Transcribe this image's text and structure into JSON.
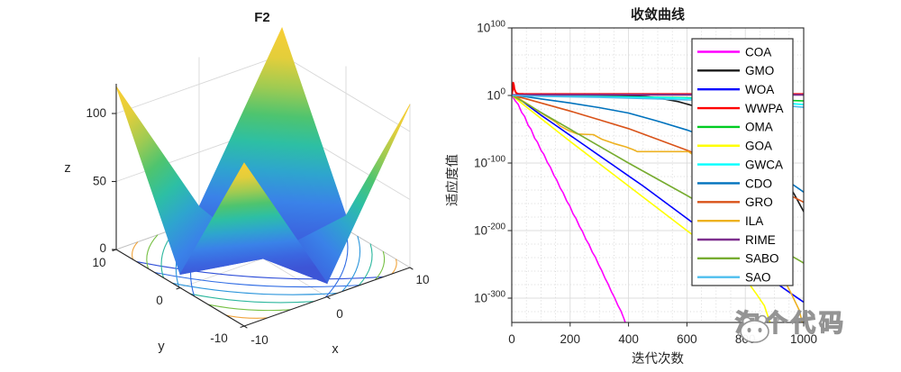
{
  "watermark": {
    "text": "淘个代码"
  },
  "chart_data": [
    {
      "type": "surface",
      "title": "F2",
      "xlabel": "x",
      "ylabel": "y",
      "zlabel": "z",
      "x_range": [
        -10,
        10
      ],
      "y_range": [
        -10,
        10
      ],
      "z_range": [
        0,
        120
      ],
      "x_ticks": [
        -10,
        0,
        10
      ],
      "y_ticks": [
        10,
        0,
        -10
      ],
      "z_ticks": [
        100,
        50,
        0
      ],
      "x_tick_labels": [
        "-10",
        "0",
        "10"
      ],
      "y_tick_labels": [
        "10",
        "0",
        "-10"
      ],
      "z_tick_labels": [
        "100",
        "50",
        "0"
      ],
      "corner_peak_value": 120,
      "shape_note": "Benchmark function F2: four corner peaks of height ~120 with valleys falling to 0 along the x=0 and y=0 axes; parula colormap; contour projection drawn on the floor plane",
      "colormap": "parula",
      "floor_contour_colors": [
        "#F0A33A",
        "#76C043",
        "#2DB79E",
        "#2D96DC",
        "#2E6BE4",
        "#3050D9"
      ]
    },
    {
      "type": "line",
      "title": "收敛曲线",
      "xlabel": "迭代次数",
      "ylabel": "适应度值",
      "y_scale": "log10",
      "x_range": [
        0,
        1000
      ],
      "y_exponent_range": [
        -336,
        100
      ],
      "x_ticks": [
        0,
        200,
        400,
        600,
        800,
        1000
      ],
      "x_tick_labels": [
        "0",
        "200",
        "400",
        "600",
        "800",
        "1000"
      ],
      "y_tick_exponents": [
        100,
        0,
        -100,
        -200,
        -300
      ],
      "y_tick_labels": [
        {
          "base": "10",
          "exp": "100"
        },
        {
          "base": "10",
          "exp": "0"
        },
        {
          "base": "10",
          "exp": "-100"
        },
        {
          "base": "10",
          "exp": "-200"
        },
        {
          "base": "10",
          "exp": "-300"
        }
      ],
      "grid": "major solid + minor dotted",
      "legend_position": "inside upper right",
      "points_format": "[iteration, log10(fitness)]",
      "series": [
        {
          "name": "COA",
          "color": "#FF00FF",
          "points": [
            [
              0,
              0.5
            ],
            [
              12,
              -8
            ],
            [
              22,
              -13
            ],
            [
              34,
              -25
            ],
            [
              44,
              -31
            ],
            [
              56,
              -44
            ],
            [
              66,
              -50
            ],
            [
              78,
              -63
            ],
            [
              88,
              -69
            ],
            [
              100,
              -81
            ],
            [
              110,
              -87
            ],
            [
              122,
              -99
            ],
            [
              132,
              -106
            ],
            [
              144,
              -118
            ],
            [
              154,
              -125
            ],
            [
              166,
              -137
            ],
            [
              176,
              -144
            ],
            [
              188,
              -156
            ],
            [
              198,
              -163
            ],
            [
              210,
              -175
            ],
            [
              220,
              -182
            ],
            [
              232,
              -194
            ],
            [
              242,
              -201
            ],
            [
              254,
              -213
            ],
            [
              264,
              -220
            ],
            [
              276,
              -232
            ],
            [
              286,
              -239
            ],
            [
              298,
              -251
            ],
            [
              308,
              -259
            ],
            [
              320,
              -271
            ],
            [
              330,
              -279
            ],
            [
              342,
              -291
            ],
            [
              352,
              -299
            ],
            [
              364,
              -311
            ],
            [
              374,
              -319
            ],
            [
              384,
              -330
            ],
            [
              392,
              -340
            ]
          ]
        },
        {
          "name": "GMO",
          "color": "#1A1A1A",
          "points": [
            [
              0,
              0.4
            ],
            [
              60,
              0.4
            ],
            [
              150,
              0.3
            ],
            [
              250,
              0.2
            ],
            [
              350,
              0.1
            ],
            [
              420,
              -0.5
            ],
            [
              470,
              -2
            ],
            [
              520,
              -5
            ],
            [
              570,
              -9
            ],
            [
              620,
              -15
            ],
            [
              670,
              -23
            ],
            [
              720,
              -34
            ],
            [
              770,
              -48
            ],
            [
              820,
              -65
            ],
            [
              860,
              -82
            ],
            [
              900,
              -103
            ],
            [
              940,
              -126
            ],
            [
              970,
              -148
            ],
            [
              1000,
              -172
            ]
          ]
        },
        {
          "name": "WOA",
          "color": "#0000FF",
          "points": [
            [
              0,
              0.3
            ],
            [
              20,
              -3
            ],
            [
              50,
              -13
            ],
            [
              100,
              -29
            ],
            [
              150,
              -44
            ],
            [
              200,
              -59
            ],
            [
              250,
              -74
            ],
            [
              300,
              -89
            ],
            [
              350,
              -104
            ],
            [
              400,
              -119
            ],
            [
              450,
              -134
            ],
            [
              500,
              -150
            ],
            [
              550,
              -166
            ],
            [
              600,
              -182
            ],
            [
              650,
              -198
            ],
            [
              700,
              -214
            ],
            [
              750,
              -229
            ],
            [
              800,
              -245
            ],
            [
              850,
              -261
            ],
            [
              900,
              -276
            ],
            [
              950,
              -291
            ],
            [
              1000,
              -306
            ]
          ]
        },
        {
          "name": "WWPA",
          "color": "#FF0000",
          "points": [
            [
              0,
              1
            ],
            [
              3,
              8
            ],
            [
              5,
              19
            ],
            [
              7,
              16
            ],
            [
              9,
              10
            ],
            [
              12,
              6
            ],
            [
              16,
              3.5
            ],
            [
              22,
              2.6
            ],
            [
              40,
              2.2
            ],
            [
              100,
              2.1
            ],
            [
              400,
              2.1
            ],
            [
              700,
              2.1
            ],
            [
              1000,
              2.1
            ]
          ]
        },
        {
          "name": "OMA",
          "color": "#00CC22",
          "points": [
            [
              0,
              0.3
            ],
            [
              100,
              -0.3
            ],
            [
              200,
              -0.8
            ],
            [
              300,
              -1.4
            ],
            [
              400,
              -2
            ],
            [
              500,
              -2.7
            ],
            [
              600,
              -3.5
            ],
            [
              700,
              -4.5
            ],
            [
              800,
              -5.6
            ],
            [
              900,
              -6.8
            ],
            [
              1000,
              -8
            ]
          ]
        },
        {
          "name": "GOA",
          "color": "#FFFF00",
          "points": [
            [
              0,
              0.2
            ],
            [
              50,
              -17
            ],
            [
              100,
              -34
            ],
            [
              200,
              -68
            ],
            [
              300,
              -101
            ],
            [
              400,
              -134
            ],
            [
              500,
              -167
            ],
            [
              600,
              -200
            ],
            [
              650,
              -216
            ],
            [
              700,
              -234
            ],
            [
              750,
              -252
            ],
            [
              800,
              -271
            ],
            [
              840,
              -295
            ],
            [
              865,
              -311
            ],
            [
              886,
              -338
            ]
          ]
        },
        {
          "name": "GWCA",
          "color": "#00FFFF",
          "points": [
            [
              0,
              0.1
            ],
            [
              100,
              -0.8
            ],
            [
              300,
              -1.8
            ],
            [
              500,
              -3
            ],
            [
              700,
              -5
            ],
            [
              850,
              -8.5
            ],
            [
              1000,
              -13.5
            ]
          ]
        },
        {
          "name": "CDO",
          "color": "#0072BD",
          "points": [
            [
              0,
              0.3
            ],
            [
              50,
              -2
            ],
            [
              100,
              -5
            ],
            [
              200,
              -11
            ],
            [
              300,
              -18
            ],
            [
              400,
              -26
            ],
            [
              500,
              -38
            ],
            [
              600,
              -51
            ],
            [
              650,
              -59
            ],
            [
              700,
              -68
            ],
            [
              750,
              -78
            ],
            [
              800,
              -89
            ],
            [
              850,
              -101
            ],
            [
              900,
              -114
            ],
            [
              950,
              -128
            ],
            [
              1000,
              -143
            ]
          ]
        },
        {
          "name": "GRO",
          "color": "#D95319",
          "points": [
            [
              0,
              0.3
            ],
            [
              50,
              -5
            ],
            [
              100,
              -11
            ],
            [
              200,
              -23
            ],
            [
              300,
              -36
            ],
            [
              400,
              -49
            ],
            [
              500,
              -65
            ],
            [
              600,
              -81
            ],
            [
              700,
              -98
            ],
            [
              800,
              -116
            ],
            [
              900,
              -136
            ],
            [
              1000,
              -158
            ]
          ]
        },
        {
          "name": "ILA",
          "color": "#EDB120",
          "points": [
            [
              0,
              0.3
            ],
            [
              30,
              -6
            ],
            [
              60,
              -14
            ],
            [
              90,
              -23
            ],
            [
              120,
              -31
            ],
            [
              150,
              -39
            ],
            [
              165,
              -45
            ],
            [
              195,
              -52
            ],
            [
              225,
              -57
            ],
            [
              280,
              -58
            ],
            [
              310,
              -65
            ],
            [
              350,
              -71
            ],
            [
              390,
              -76
            ],
            [
              415,
              -80
            ],
            [
              430,
              -83
            ],
            [
              605,
              -83
            ],
            [
              640,
              -93
            ],
            [
              680,
              -112
            ],
            [
              720,
              -134
            ],
            [
              760,
              -158
            ],
            [
              800,
              -184
            ],
            [
              840,
              -210
            ],
            [
              880,
              -236
            ],
            [
              920,
              -263
            ],
            [
              955,
              -291
            ],
            [
              985,
              -318
            ],
            [
              996,
              -338
            ]
          ]
        },
        {
          "name": "RIME",
          "color": "#7E2F8E",
          "points": [
            [
              0,
              0.8
            ],
            [
              100,
              0.9
            ],
            [
              500,
              0.9
            ],
            [
              1000,
              0.9
            ]
          ]
        },
        {
          "name": "SABO",
          "color": "#77AC30",
          "points": [
            [
              0,
              0.2
            ],
            [
              50,
              -12
            ],
            [
              100,
              -25
            ],
            [
              200,
              -50
            ],
            [
              300,
              -75
            ],
            [
              400,
              -100
            ],
            [
              500,
              -124
            ],
            [
              600,
              -148
            ],
            [
              700,
              -173
            ],
            [
              800,
              -198
            ],
            [
              900,
              -223
            ],
            [
              1000,
              -248
            ]
          ]
        },
        {
          "name": "SAO",
          "color": "#4DBEEE",
          "points": [
            [
              0,
              0
            ],
            [
              100,
              -1.2
            ],
            [
              300,
              -2.8
            ],
            [
              500,
              -5
            ],
            [
              700,
              -8
            ],
            [
              850,
              -12
            ],
            [
              1000,
              -17.5
            ]
          ]
        }
      ]
    }
  ]
}
